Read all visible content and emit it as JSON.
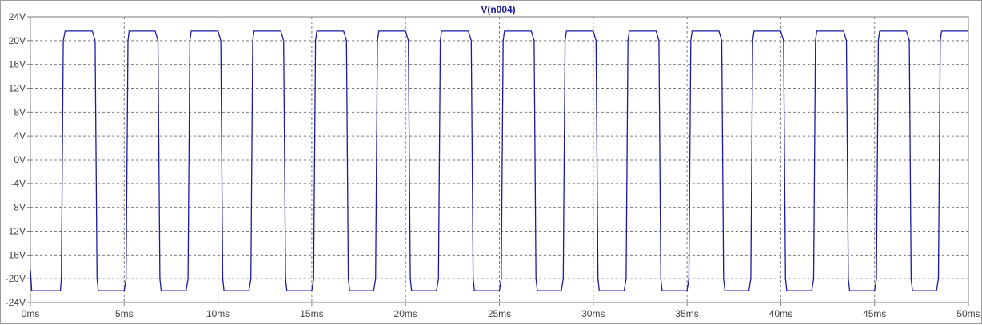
{
  "chart_data": {
    "type": "line",
    "title": "V(n004)",
    "xlabel": "",
    "ylabel": "",
    "xlim": [
      0,
      50
    ],
    "ylim": [
      -24,
      24
    ],
    "x_ticks": [
      "0ms",
      "5ms",
      "10ms",
      "15ms",
      "20ms",
      "25ms",
      "30ms",
      "35ms",
      "40ms",
      "45ms",
      "50ms"
    ],
    "y_ticks": [
      "24V",
      "20V",
      "16V",
      "12V",
      "8V",
      "4V",
      "0V",
      "-4V",
      "-8V",
      "-12V",
      "-16V",
      "-20V",
      "-24V"
    ],
    "grid": true,
    "legend": "none",
    "series": [
      {
        "name": "V(n004)",
        "color": "#1a1aa6",
        "x": [
          0,
          0.07,
          0.1,
          1.6,
          1.65,
          1.75,
          1.85,
          3.3,
          3.45,
          3.55,
          3.62,
          5.0,
          5.1,
          5.2,
          5.26,
          6.65,
          6.8,
          6.9,
          6.97,
          8.3,
          8.4,
          8.5,
          8.57,
          10.0,
          10.15,
          10.25,
          10.32,
          11.65,
          11.75,
          11.85,
          11.92,
          13.35,
          13.5,
          13.6,
          13.67,
          15.0,
          15.1,
          15.2,
          15.27,
          16.7,
          16.85,
          16.95,
          17.02,
          18.3,
          18.4,
          18.5,
          18.57,
          20.0,
          20.15,
          20.25,
          20.32,
          21.65,
          21.75,
          21.85,
          21.92,
          23.35,
          23.5,
          23.6,
          23.67,
          25.0,
          25.1,
          25.2,
          25.27,
          26.7,
          26.85,
          26.95,
          27.02,
          28.3,
          28.4,
          28.5,
          28.57,
          30.0,
          30.15,
          30.25,
          30.32,
          31.65,
          31.75,
          31.85,
          31.92,
          33.35,
          33.5,
          33.6,
          33.67,
          35.0,
          35.1,
          35.2,
          35.27,
          36.7,
          36.85,
          36.95,
          37.02,
          38.3,
          38.4,
          38.5,
          38.57,
          40.0,
          40.15,
          40.25,
          40.32,
          41.65,
          41.75,
          41.85,
          41.92,
          43.35,
          43.5,
          43.6,
          43.67,
          45.0,
          45.1,
          45.2,
          45.27,
          46.7,
          46.85,
          46.95,
          47.02,
          48.3,
          48.4,
          48.5,
          48.57,
          50.0
        ],
        "y": [
          -18.5,
          -22,
          -22,
          -22,
          -20,
          20,
          21.6,
          21.6,
          20,
          -20,
          -22,
          -22,
          -20,
          20,
          21.6,
          21.6,
          20,
          -20,
          -22,
          -22,
          -20,
          20,
          21.6,
          21.6,
          20,
          -20,
          -22,
          -22,
          -20,
          20,
          21.6,
          21.6,
          20,
          -20,
          -22,
          -22,
          -20,
          20,
          21.6,
          21.6,
          20,
          -20,
          -22,
          -22,
          -20,
          20,
          21.6,
          21.6,
          20,
          -20,
          -22,
          -22,
          -20,
          20,
          21.6,
          21.6,
          20,
          -20,
          -22,
          -22,
          -20,
          20,
          21.6,
          21.6,
          20,
          -20,
          -22,
          -22,
          -20,
          20,
          21.6,
          21.6,
          20,
          -20,
          -22,
          -22,
          -20,
          20,
          21.6,
          21.6,
          20,
          -20,
          -22,
          -22,
          -20,
          20,
          21.6,
          21.6,
          20,
          -20,
          -22,
          -22,
          -20,
          20,
          21.6,
          21.6,
          20,
          -20,
          -22,
          -22,
          -20,
          20,
          21.6,
          21.6,
          20,
          -20,
          -22,
          -22,
          -20,
          20,
          21.6,
          21.6,
          20,
          -20,
          -22,
          -22,
          -20,
          20,
          21.6,
          21.6
        ]
      }
    ]
  },
  "colors": {
    "grid": "#7a7a7a",
    "axis": "#7a7a7a",
    "tick_text": "#444444",
    "title_color": "#1a1aa6"
  }
}
